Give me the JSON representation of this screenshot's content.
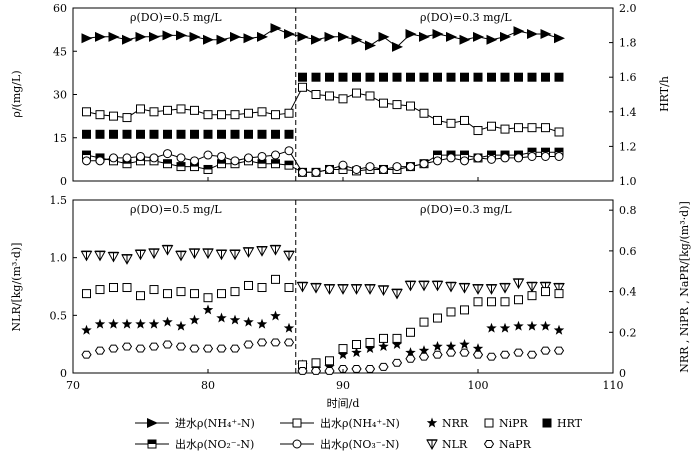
{
  "chart_data": [
    {
      "panel": "top",
      "type": "line",
      "xlim": [
        70,
        110
      ],
      "ylim_left": [
        0,
        60
      ],
      "ylim_right": [
        1.0,
        2.0
      ],
      "ylabel_left": "ρ/(mg/L)",
      "ylabel_right": "HRT/h",
      "yticks_left": [
        "0",
        "15",
        "30",
        "45",
        "60"
      ],
      "yticks_right": [
        "1.0",
        "1.2",
        "1.4",
        "1.6",
        "1.8",
        "2.0"
      ],
      "annotations": [
        "ρ(DO)=0.5 mg/L",
        "ρ(DO)=0.3 mg/L"
      ],
      "divider_x": 86.5,
      "series": [
        {
          "name": "进水ρ(NH4+-N)",
          "axis": "left",
          "marker": "tri-right",
          "line": true,
          "x": [
            71,
            72,
            73,
            74,
            75,
            76,
            77,
            78,
            79,
            80,
            81,
            82,
            83,
            84,
            85,
            86,
            87,
            88,
            89,
            90,
            91,
            92,
            93,
            94,
            95,
            96,
            97,
            98,
            99,
            100,
            101,
            102,
            103,
            104,
            105,
            106
          ],
          "y": [
            49.5,
            50,
            50,
            49,
            50,
            50,
            50.5,
            50.5,
            50,
            49,
            49,
            50,
            49.5,
            50,
            53,
            51,
            50,
            49,
            50,
            50,
            49,
            47,
            50,
            46.5,
            51,
            50,
            51,
            50,
            49,
            50,
            49,
            50,
            52,
            51,
            51,
            49.5
          ]
        },
        {
          "name": "出水ρ(NH4+-N)",
          "axis": "left",
          "marker": "square-open",
          "line": true,
          "x": [
            71,
            72,
            73,
            74,
            75,
            76,
            77,
            78,
            79,
            80,
            81,
            82,
            83,
            84,
            85,
            86,
            87,
            88,
            89,
            90,
            91,
            92,
            93,
            94,
            95,
            96,
            97,
            98,
            99,
            100,
            101,
            102,
            103,
            104,
            105,
            106
          ],
          "y": [
            24,
            23,
            22.5,
            22,
            25,
            24,
            24.5,
            25,
            24.5,
            23,
            23,
            23,
            23.5,
            24,
            23,
            23.5,
            32.5,
            30,
            29.5,
            28.5,
            30.5,
            29.5,
            27,
            26.5,
            26,
            23.5,
            21,
            20,
            21,
            17.5,
            19,
            18,
            18.5,
            18.5,
            18.5,
            17
          ]
        },
        {
          "name": "出水ρ(NO2−-N)",
          "axis": "left",
          "marker": "square-half",
          "line": true,
          "x": [
            71,
            72,
            73,
            74,
            75,
            76,
            77,
            78,
            79,
            80,
            81,
            82,
            83,
            84,
            85,
            86,
            87,
            88,
            89,
            90,
            91,
            92,
            93,
            94,
            95,
            96,
            97,
            98,
            99,
            100,
            101,
            102,
            103,
            104,
            105,
            106
          ],
          "y": [
            9,
            8,
            7,
            6,
            7,
            7,
            6,
            5,
            5,
            4,
            6,
            6,
            7,
            6,
            6,
            5.5,
            3,
            3,
            4,
            4,
            3.5,
            4,
            4,
            4,
            5,
            6,
            9,
            9,
            9,
            8,
            9,
            9,
            9,
            10,
            10,
            10
          ]
        },
        {
          "name": "出水ρ(NO3−-N)",
          "axis": "left",
          "marker": "circle-open",
          "line": true,
          "x": [
            71,
            72,
            73,
            74,
            75,
            76,
            77,
            78,
            79,
            80,
            81,
            82,
            83,
            84,
            85,
            86,
            87,
            88,
            89,
            90,
            91,
            92,
            93,
            94,
            95,
            96,
            97,
            98,
            99,
            100,
            101,
            102,
            103,
            104,
            105,
            106
          ],
          "y": [
            7,
            7,
            8,
            8,
            8.5,
            8,
            9.5,
            8,
            7,
            9,
            8.5,
            7,
            8,
            8.5,
            9,
            10.5,
            3,
            3,
            4,
            5.5,
            4,
            5,
            4,
            5,
            5,
            6,
            7,
            8,
            7,
            8,
            7.5,
            8,
            8,
            8.5,
            8.5,
            8.5
          ]
        },
        {
          "name": "HRT",
          "axis": "right",
          "marker": "square-filled",
          "line": false,
          "x": [
            71,
            72,
            73,
            74,
            75,
            76,
            77,
            78,
            79,
            80,
            81,
            82,
            83,
            84,
            85,
            86,
            87,
            88,
            89,
            90,
            91,
            92,
            93,
            94,
            95,
            96,
            97,
            98,
            99,
            100,
            101,
            102,
            103,
            104,
            105,
            106
          ],
          "y": [
            1.27,
            1.27,
            1.27,
            1.27,
            1.27,
            1.27,
            1.27,
            1.27,
            1.27,
            1.27,
            1.27,
            1.27,
            1.27,
            1.27,
            1.27,
            1.27,
            1.6,
            1.6,
            1.6,
            1.6,
            1.6,
            1.6,
            1.6,
            1.6,
            1.6,
            1.6,
            1.6,
            1.6,
            1.6,
            1.6,
            1.6,
            1.6,
            1.6,
            1.6,
            1.6,
            1.6
          ]
        }
      ]
    },
    {
      "panel": "bottom",
      "type": "scatter",
      "xlim": [
        70,
        110
      ],
      "xlabel": "时间/d",
      "xticks": [
        "70",
        "80",
        "90",
        "100",
        "110"
      ],
      "ylim_left": [
        0,
        1.5
      ],
      "ylim_right": [
        0,
        0.85
      ],
      "ylabel_left": "NLR/[kg/(m³·d)]",
      "ylabel_right": "NRR , NiPR , NaPR/[kg/(m³·d)]",
      "yticks_left": [
        "0",
        "0.5",
        "1.0",
        "1.5"
      ],
      "yticks_right": [
        "0",
        "0.2",
        "0.4",
        "0.6",
        "0.8"
      ],
      "annotations": [
        "ρ(DO)=0.5 mg/L",
        "ρ(DO)=0.3 mg/L"
      ],
      "divider_x": 86.5,
      "series": [
        {
          "name": "NLR",
          "axis": "left",
          "marker": "tri-down-open",
          "x": [
            71,
            72,
            73,
            74,
            75,
            76,
            77,
            78,
            79,
            80,
            81,
            82,
            83,
            84,
            85,
            86,
            87,
            88,
            89,
            90,
            91,
            92,
            93,
            94,
            95,
            96,
            97,
            98,
            99,
            100,
            101,
            102,
            103,
            104,
            105,
            106
          ],
          "y": [
            1.02,
            1.02,
            1.01,
            0.99,
            1.03,
            1.04,
            1.07,
            1.02,
            1.04,
            1.04,
            1.03,
            1.03,
            1.05,
            1.06,
            1.07,
            1.02,
            0.75,
            0.74,
            0.73,
            0.73,
            0.73,
            0.73,
            0.72,
            0.69,
            0.76,
            0.76,
            0.76,
            0.75,
            0.74,
            0.73,
            0.73,
            0.74,
            0.78,
            0.75,
            0.75,
            0.74
          ]
        },
        {
          "name": "NRR",
          "axis": "right",
          "marker": "star",
          "x": [
            71,
            72,
            73,
            74,
            75,
            76,
            77,
            78,
            79,
            80,
            81,
            82,
            83,
            84,
            85,
            86,
            87,
            88,
            89,
            90,
            91,
            92,
            93,
            94,
            95,
            96,
            97,
            98,
            99,
            100,
            101,
            102,
            103,
            104,
            105,
            106
          ],
          "y": [
            0.21,
            0.24,
            0.24,
            0.24,
            0.24,
            0.24,
            0.25,
            0.23,
            0.26,
            0.31,
            0.27,
            0.26,
            0.25,
            0.24,
            0.28,
            0.22,
            0.04,
            0.02,
            0.03,
            0.09,
            0.1,
            0.12,
            0.13,
            0.14,
            0.1,
            0.11,
            0.13,
            0.13,
            0.14,
            0.12,
            0.22,
            0.22,
            0.23,
            0.23,
            0.23,
            0.21
          ]
        },
        {
          "name": "NiPR",
          "axis": "right",
          "marker": "square-open",
          "x": [
            71,
            72,
            73,
            74,
            75,
            76,
            77,
            78,
            79,
            80,
            81,
            82,
            83,
            84,
            85,
            86,
            87,
            88,
            89,
            90,
            91,
            92,
            93,
            94,
            95,
            96,
            97,
            98,
            99,
            100,
            101,
            102,
            103,
            104,
            105,
            106
          ],
          "y": [
            0.39,
            0.41,
            0.42,
            0.42,
            0.38,
            0.41,
            0.39,
            0.4,
            0.39,
            0.37,
            0.39,
            0.4,
            0.43,
            0.42,
            0.46,
            0.42,
            0.04,
            0.05,
            0.06,
            0.12,
            0.14,
            0.15,
            0.17,
            0.17,
            0.2,
            0.25,
            0.27,
            0.3,
            0.31,
            0.35,
            0.35,
            0.35,
            0.36,
            0.38,
            0.4,
            0.39
          ]
        },
        {
          "name": "NaPR",
          "axis": "right",
          "marker": "hexagon-open",
          "x": [
            71,
            72,
            73,
            74,
            75,
            76,
            77,
            78,
            79,
            80,
            81,
            82,
            83,
            84,
            85,
            86,
            87,
            88,
            89,
            90,
            91,
            92,
            93,
            94,
            95,
            96,
            97,
            98,
            99,
            100,
            101,
            102,
            103,
            104,
            105,
            106
          ],
          "y": [
            0.09,
            0.11,
            0.12,
            0.13,
            0.12,
            0.13,
            0.14,
            0.13,
            0.12,
            0.12,
            0.12,
            0.12,
            0.14,
            0.15,
            0.15,
            0.15,
            0.01,
            0.01,
            0.01,
            0.02,
            0.02,
            0.02,
            0.03,
            0.05,
            0.07,
            0.08,
            0.09,
            0.1,
            0.1,
            0.09,
            0.08,
            0.09,
            0.1,
            0.09,
            0.11,
            0.11
          ]
        }
      ]
    }
  ],
  "legend": [
    {
      "label": "进水ρ(NH₄⁺-N)",
      "marker": "tri-right",
      "line": true
    },
    {
      "label": "出水ρ(NH₄⁺-N)",
      "marker": "square-open",
      "line": true
    },
    {
      "label": "NRR",
      "marker": "star",
      "line": false
    },
    {
      "label": "NiPR",
      "marker": "square-open",
      "line": false
    },
    {
      "label": "HRT",
      "marker": "square-filled",
      "line": false
    },
    {
      "label": "出水ρ(NO₂⁻-N)",
      "marker": "square-half",
      "line": true
    },
    {
      "label": "出水ρ(NO₃⁻-N)",
      "marker": "circle-open",
      "line": true
    },
    {
      "label": "NLR",
      "marker": "tri-down-open",
      "line": false
    },
    {
      "label": "NaPR",
      "marker": "hexagon-open",
      "line": false
    }
  ]
}
